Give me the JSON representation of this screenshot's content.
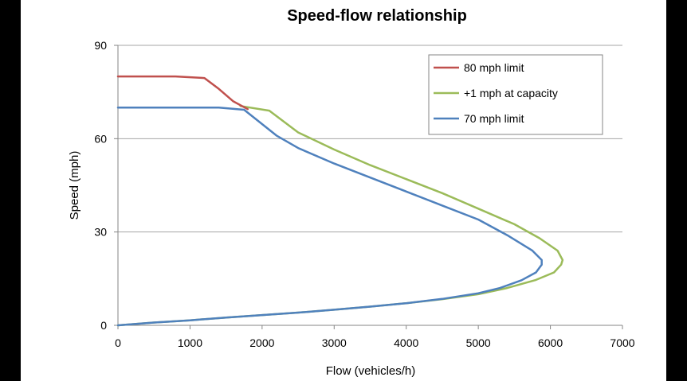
{
  "chart_data": {
    "type": "line",
    "title": "Speed-flow relationship",
    "xlabel": "Flow (vehicles/h)",
    "ylabel": "Speed (mph)",
    "xlim": [
      0,
      7000
    ],
    "ylim": [
      0,
      90
    ],
    "xticks": [
      "0",
      "1000",
      "2000",
      "3000",
      "4000",
      "5000",
      "6000",
      "7000"
    ],
    "yticks": [
      "0",
      "30",
      "60",
      "90"
    ],
    "grid": "horizontal",
    "legend_position": "top-right",
    "series": [
      {
        "name": "80 mph limit",
        "color": "#c0504d",
        "points": [
          [
            0,
            80
          ],
          [
            800,
            80
          ],
          [
            1200,
            79.5
          ],
          [
            1400,
            76
          ],
          [
            1600,
            72
          ],
          [
            1800,
            69.5
          ]
        ]
      },
      {
        "name": "+1 mph at capacity",
        "color": "#9bbb59",
        "points": [
          [
            0,
            0
          ],
          [
            500,
            0.9
          ],
          [
            1000,
            1.6
          ],
          [
            1500,
            2.5
          ],
          [
            2000,
            3.3
          ],
          [
            2500,
            4.1
          ],
          [
            3000,
            5
          ],
          [
            3500,
            6
          ],
          [
            4000,
            7.1
          ],
          [
            4500,
            8.4
          ],
          [
            5000,
            10
          ],
          [
            5400,
            12
          ],
          [
            5800,
            14.6
          ],
          [
            6050,
            17
          ],
          [
            6150,
            19.5
          ],
          [
            6170,
            21
          ],
          [
            6100,
            24
          ],
          [
            5850,
            28
          ],
          [
            5500,
            32.5
          ],
          [
            5000,
            37.5
          ],
          [
            4500,
            42.5
          ],
          [
            4000,
            47
          ],
          [
            3500,
            51.5
          ],
          [
            3000,
            56.5
          ],
          [
            2500,
            62
          ],
          [
            2100,
            69
          ],
          [
            1700,
            70.5
          ]
        ]
      },
      {
        "name": "70 mph limit",
        "color": "#4f81bd",
        "points": [
          [
            0,
            0
          ],
          [
            500,
            0.9
          ],
          [
            1000,
            1.6
          ],
          [
            1500,
            2.5
          ],
          [
            2000,
            3.3
          ],
          [
            2500,
            4.1
          ],
          [
            3000,
            5
          ],
          [
            3500,
            6
          ],
          [
            4000,
            7.1
          ],
          [
            4500,
            8.5
          ],
          [
            5000,
            10.3
          ],
          [
            5300,
            12
          ],
          [
            5600,
            14.5
          ],
          [
            5800,
            17
          ],
          [
            5880,
            19.5
          ],
          [
            5880,
            21
          ],
          [
            5750,
            24
          ],
          [
            5400,
            29
          ],
          [
            5000,
            34
          ],
          [
            4500,
            38.5
          ],
          [
            4000,
            43
          ],
          [
            3500,
            47.5
          ],
          [
            3000,
            52
          ],
          [
            2500,
            57
          ],
          [
            2200,
            61
          ],
          [
            1750,
            69.3
          ],
          [
            1400,
            70
          ],
          [
            1000,
            70
          ],
          [
            0,
            70
          ]
        ]
      }
    ]
  }
}
